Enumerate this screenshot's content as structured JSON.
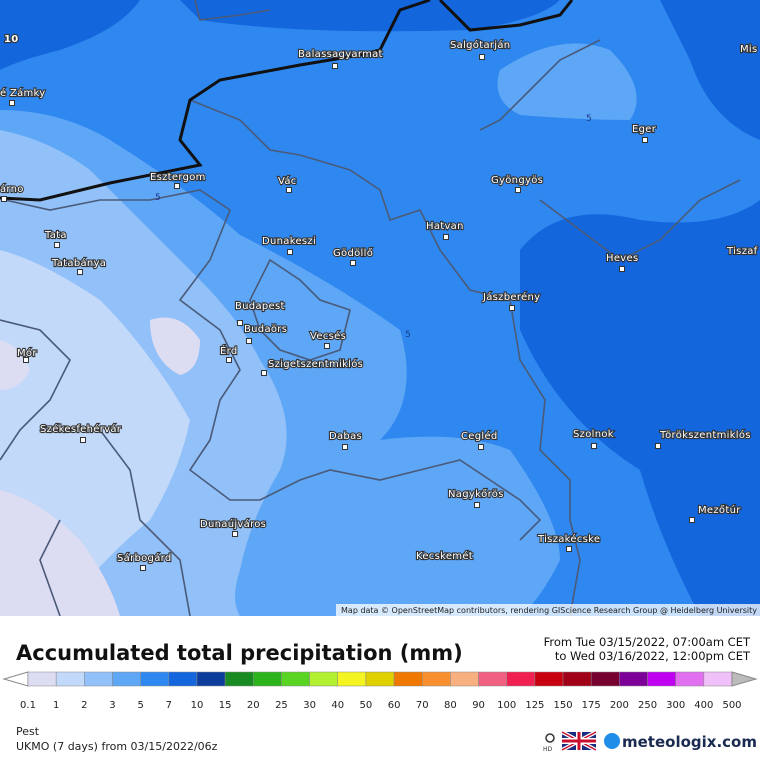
{
  "map": {
    "corner_label": "10",
    "contour_labels": [
      "5",
      "5",
      "5"
    ],
    "places": [
      "é Zámky",
      "Balassagyarmat",
      "Salgótarján",
      "Mis",
      "Eger",
      "árno",
      "Esztergom",
      "Vác",
      "Gyöngyös",
      "Tata",
      "Dunakeszi",
      "Gödöllő",
      "Hatvan",
      "Tiszaf",
      "Tatabánya",
      "Heves",
      "Jászberény",
      "Budapest",
      "Budaörs",
      "Vecsés",
      "Mór",
      "Érd",
      "Szigetszentmiklós",
      "Székesfehérvár",
      "Dabas",
      "Cegléd",
      "Szolnok",
      "Törökszentmiklós",
      "Nagykőrös",
      "Mezőtúr",
      "Dunaújváros",
      "Tiszakécske",
      "Kecskemét",
      "Sárbogárd"
    ],
    "attribution": "Map data © OpenStreetMap contributors, rendering GIScience Research Group @ Heidelberg University"
  },
  "legend": {
    "title": "Accumulated total precipitation (mm)",
    "period_from": "From Tue 03/15/2022, 07:00am CET",
    "period_to": "to Wed 03/16/2022, 12:00pm CET",
    "labels": [
      0.1,
      1,
      2,
      3,
      5,
      7,
      10,
      15,
      20,
      25,
      30,
      40,
      50,
      60,
      70,
      80,
      90,
      100,
      125,
      150,
      175,
      200,
      250,
      300,
      400,
      500
    ],
    "colors": [
      "#dcdcf2",
      "#c2d9fa",
      "#92c0f8",
      "#5ea6f6",
      "#2f88f0",
      "#1466dc",
      "#0c3c9c",
      "#1a8a22",
      "#2cb41c",
      "#5ad422",
      "#b4f032",
      "#f4f420",
      "#e0d000",
      "#f07800",
      "#f89030",
      "#f8b080",
      "#f06080",
      "#f02050",
      "#c80010",
      "#a00018",
      "#780030",
      "#7c0098",
      "#c000f0",
      "#e070f0",
      "#f0c0f8"
    ]
  },
  "footer": {
    "region": "Pest",
    "model": "UKMO (7 days) from 03/15/2022/06z",
    "hd": "HD",
    "brand": "meteologix.com"
  }
}
